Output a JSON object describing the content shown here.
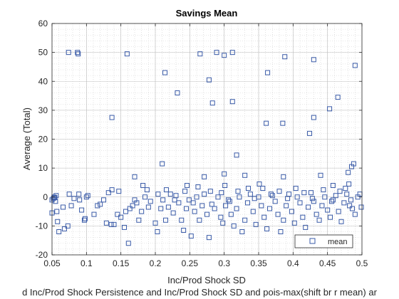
{
  "chart_data": {
    "type": "scatter",
    "title": "Savings Mean",
    "xlabel": "Inc/Prod Shock SD",
    "ylabel": "Average (Total)",
    "caption": "d Inc/Prod Shock Persistence and Inc/Prod Shock SD and pois-max(shift br r mean) ar",
    "xlim": [
      0.05,
      0.5
    ],
    "ylim": [
      -20,
      60
    ],
    "x_ticks": [
      "0.05",
      "0.1",
      "0.15",
      "0.2",
      "0.25",
      "0.3",
      "0.35",
      "0.4",
      "0.45",
      "0.5"
    ],
    "y_ticks": [
      "-20",
      "-10",
      "0",
      "10",
      "20",
      "30",
      "40",
      "50",
      "60"
    ],
    "grid": true,
    "legend": {
      "position": "bottom-right"
    },
    "marker": "square",
    "color": "#3a5ba8",
    "series": [
      {
        "name": "mean",
        "points": [
          [
            0.074,
            50
          ],
          [
            0.087,
            50
          ],
          [
            0.088,
            49.5
          ],
          [
            0.159,
            49.5
          ],
          [
            0.265,
            49.5
          ],
          [
            0.289,
            50
          ],
          [
            0.3,
            49
          ],
          [
            0.312,
            50
          ],
          [
            0.388,
            48.5
          ],
          [
            0.43,
            47.5
          ],
          [
            0.49,
            45.5
          ],
          [
            0.214,
            43
          ],
          [
            0.278,
            40.5
          ],
          [
            0.363,
            43
          ],
          [
            0.232,
            36
          ],
          [
            0.283,
            32.5
          ],
          [
            0.312,
            33
          ],
          [
            0.465,
            34.5
          ],
          [
            0.453,
            30.5
          ],
          [
            0.137,
            27.5
          ],
          [
            0.43,
            27.5
          ],
          [
            0.361,
            25.5
          ],
          [
            0.385,
            25.5
          ],
          [
            0.424,
            22
          ],
          [
            0.318,
            14.5
          ],
          [
            0.21,
            11.5
          ],
          [
            0.488,
            11.5
          ],
          [
            0.485,
            10.5
          ],
          [
            0.48,
            8.5
          ],
          [
            0.44,
            7.5
          ],
          [
            0.386,
            7
          ],
          [
            0.33,
            7.5
          ],
          [
            0.3,
            8
          ],
          [
            0.271,
            7
          ],
          [
            0.17,
            7
          ],
          [
            0.481,
            4.5
          ],
          [
            0.458,
            4
          ],
          [
            0.351,
            4.5
          ],
          [
            0.301,
            4
          ],
          [
            0.246,
            4
          ],
          [
            0.182,
            4
          ],
          [
            0.137,
            2.5
          ],
          [
            0.05,
            -1
          ],
          [
            0.052,
            -0.5
          ],
          [
            0.053,
            0
          ],
          [
            0.055,
            -1.5
          ],
          [
            0.056,
            0.5
          ],
          [
            0.054,
            -0.2
          ],
          [
            0.057,
            -5
          ],
          [
            0.05,
            -5.5
          ],
          [
            0.058,
            -8.5
          ],
          [
            0.06,
            -12
          ],
          [
            0.068,
            -11
          ],
          [
            0.073,
            -10
          ],
          [
            0.066,
            -3.5
          ],
          [
            0.075,
            1
          ],
          [
            0.078,
            -3
          ],
          [
            0.082,
            -0.5
          ],
          [
            0.089,
            1
          ],
          [
            0.09,
            -1
          ],
          [
            0.093,
            -4.5
          ],
          [
            0.098,
            -7.5
          ],
          [
            0.1,
            0
          ],
          [
            0.102,
            0.5
          ],
          [
            0.097,
            -8
          ],
          [
            0.111,
            -6
          ],
          [
            0.116,
            -3
          ],
          [
            0.12,
            -2.5
          ],
          [
            0.129,
            -9
          ],
          [
            0.136,
            -9.5
          ],
          [
            0.14,
            -9.5
          ],
          [
            0.145,
            -6
          ],
          [
            0.15,
            -7
          ],
          [
            0.155,
            -10.5
          ],
          [
            0.161,
            -16
          ],
          [
            0.157,
            -5
          ],
          [
            0.163,
            -4
          ],
          [
            0.167,
            -3
          ],
          [
            0.17,
            -1
          ],
          [
            0.176,
            -8
          ],
          [
            0.18,
            -5
          ],
          [
            0.185,
            0
          ],
          [
            0.19,
            -3.5
          ],
          [
            0.193,
            -1.5
          ],
          [
            0.2,
            -9
          ],
          [
            0.203,
            -12
          ],
          [
            0.208,
            -4
          ],
          [
            0.211,
            -1
          ],
          [
            0.215,
            -8
          ],
          [
            0.219,
            -3.5
          ],
          [
            0.222,
            1
          ],
          [
            0.226,
            -5.5
          ],
          [
            0.23,
            0.5
          ],
          [
            0.234,
            -2
          ],
          [
            0.238,
            -8
          ],
          [
            0.241,
            -11.5
          ],
          [
            0.245,
            -4
          ],
          [
            0.249,
            -1
          ],
          [
            0.252,
            -13.5
          ],
          [
            0.257,
            -5
          ],
          [
            0.26,
            0
          ],
          [
            0.264,
            -8
          ],
          [
            0.268,
            -3
          ],
          [
            0.271,
            1
          ],
          [
            0.275,
            -6
          ],
          [
            0.278,
            -14
          ],
          [
            0.282,
            -2.5
          ],
          [
            0.286,
            -4
          ],
          [
            0.291,
            0
          ],
          [
            0.295,
            -7
          ],
          [
            0.298,
            -9
          ],
          [
            0.302,
            -3
          ],
          [
            0.306,
            -1
          ],
          [
            0.31,
            -6
          ],
          [
            0.314,
            -10
          ],
          [
            0.318,
            -4
          ],
          [
            0.322,
            0
          ],
          [
            0.326,
            -12
          ],
          [
            0.33,
            -8
          ],
          [
            0.334,
            -2
          ],
          [
            0.338,
            1
          ],
          [
            0.342,
            -5
          ],
          [
            0.346,
            -9.5
          ],
          [
            0.35,
            0
          ],
          [
            0.354,
            -3
          ],
          [
            0.358,
            -7
          ],
          [
            0.362,
            -11
          ],
          [
            0.366,
            -4
          ],
          [
            0.37,
            0.5
          ],
          [
            0.374,
            -1.5
          ],
          [
            0.378,
            -6
          ],
          [
            0.382,
            -12
          ],
          [
            0.386,
            -8
          ],
          [
            0.39,
            -3
          ],
          [
            0.394,
            1
          ],
          [
            0.398,
            -5
          ],
          [
            0.402,
            -9
          ],
          [
            0.406,
            0
          ],
          [
            0.41,
            -2
          ],
          [
            0.414,
            -7
          ],
          [
            0.418,
            -10.5
          ],
          [
            0.422,
            -3.5
          ],
          [
            0.426,
            1.5
          ],
          [
            0.43,
            -1.5
          ],
          [
            0.434,
            -6
          ],
          [
            0.438,
            -8
          ],
          [
            0.442,
            -3
          ],
          [
            0.446,
            0
          ],
          [
            0.45,
            -4.5
          ],
          [
            0.454,
            -7
          ],
          [
            0.458,
            -1
          ],
          [
            0.462,
            0.5
          ],
          [
            0.466,
            -5
          ],
          [
            0.47,
            -8.5
          ],
          [
            0.474,
            -2
          ],
          [
            0.478,
            1
          ],
          [
            0.482,
            -3
          ],
          [
            0.486,
            -4
          ],
          [
            0.49,
            -6
          ],
          [
            0.494,
            0
          ],
          [
            0.497,
            1
          ],
          [
            0.499,
            -3.5
          ],
          [
            0.125,
            -1
          ],
          [
            0.132,
            1.5
          ],
          [
            0.147,
            2
          ],
          [
            0.173,
            -2
          ],
          [
            0.188,
            2.5
          ],
          [
            0.204,
            1
          ],
          [
            0.216,
            2.5
          ],
          [
            0.228,
            -1
          ],
          [
            0.243,
            2
          ],
          [
            0.255,
            -2
          ],
          [
            0.262,
            3.5
          ],
          [
            0.28,
            2
          ],
          [
            0.296,
            1.5
          ],
          [
            0.308,
            -1.5
          ],
          [
            0.32,
            2
          ],
          [
            0.335,
            3
          ],
          [
            0.344,
            -0.5
          ],
          [
            0.356,
            3
          ],
          [
            0.368,
            1
          ],
          [
            0.38,
            2
          ],
          [
            0.392,
            -0.5
          ],
          [
            0.404,
            3
          ],
          [
            0.416,
            1.5
          ],
          [
            0.428,
            -0.5
          ],
          [
            0.444,
            2.5
          ],
          [
            0.456,
            -1.5
          ],
          [
            0.468,
            2
          ],
          [
            0.476,
            3
          ],
          [
            0.484,
            -1
          ]
        ]
      }
    ]
  }
}
